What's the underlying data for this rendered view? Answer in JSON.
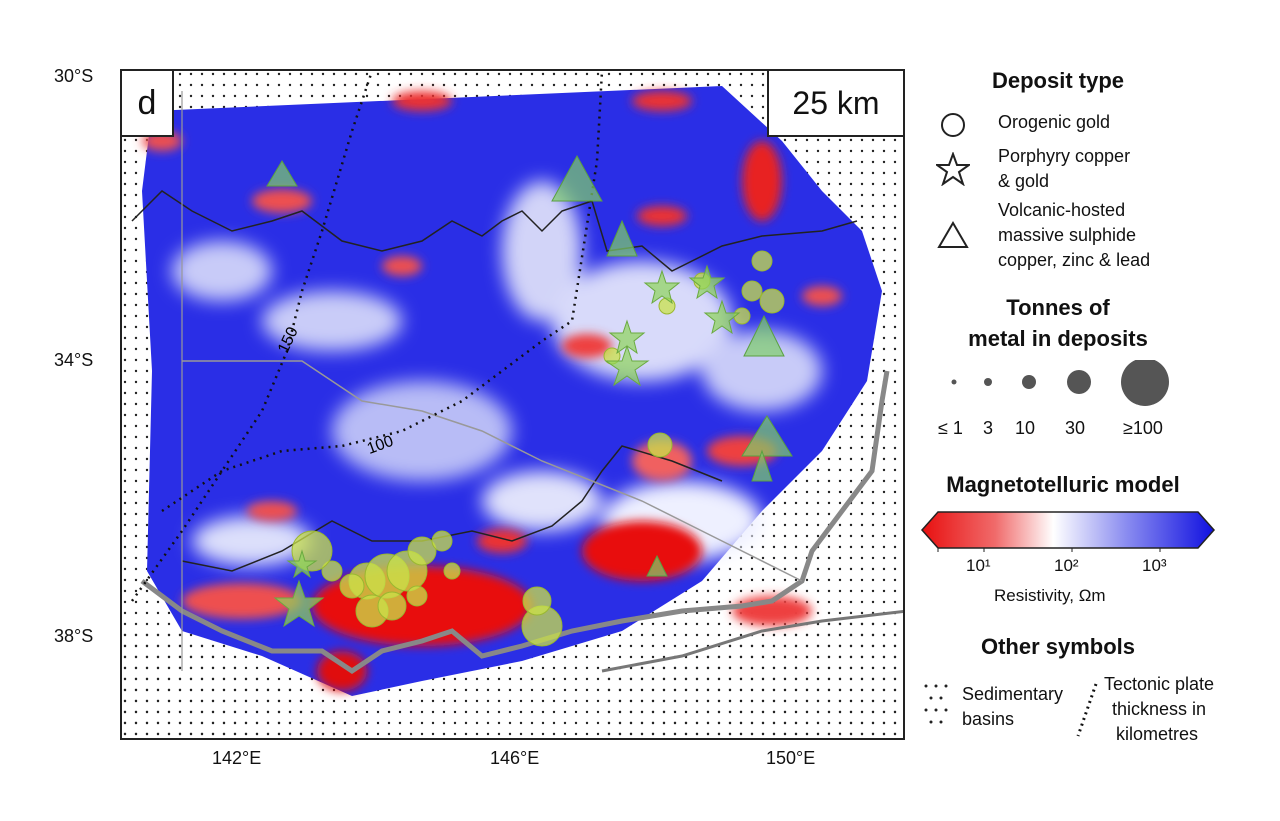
{
  "map": {
    "panel_letter": "d",
    "depth_label": "25 km",
    "lat_labels": [
      "30°S",
      "34°S",
      "38°S"
    ],
    "lon_labels": [
      "142°E",
      "146°E",
      "150°E"
    ],
    "contour_labels": [
      "150",
      "100"
    ]
  },
  "legend": {
    "deposit_type_title": "Deposit type",
    "deposit_types": [
      {
        "symbol": "circle-icon",
        "lines": [
          "Orogenic gold"
        ]
      },
      {
        "symbol": "star-icon",
        "lines": [
          "Porphyry copper",
          "& gold"
        ]
      },
      {
        "symbol": "triangle-icon",
        "lines": [
          "Volcanic-hosted",
          "massive sulphide",
          "copper, zinc & lead"
        ]
      }
    ],
    "tonnes_title_line1": "Tonnes of",
    "tonnes_title_line2": "metal in deposits",
    "size_labels": [
      "≤ 1",
      "3",
      "10",
      "30",
      "≥100"
    ],
    "mt_title": "Magnetotelluric model",
    "colorbar_ticks": [
      "10¹",
      "10²",
      "10³"
    ],
    "colorbar_label": "Resistivity, Ωm",
    "colors": {
      "low": "#e81010",
      "mid": "#ffffff",
      "high": "#1010e0"
    },
    "other_symbols_title": "Other symbols",
    "sedimentary_label_1": "Sedimentary",
    "sedimentary_label_2": "basins",
    "plate_label_1": "Tectonic plate",
    "plate_label_2": "thickness in",
    "plate_label_3": "kilometres"
  }
}
